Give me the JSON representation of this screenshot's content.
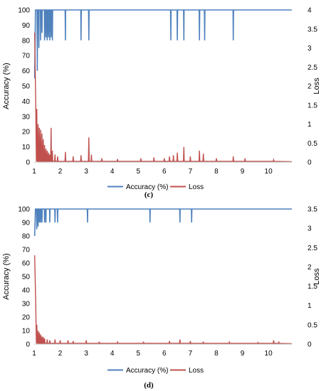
{
  "chart_data": [
    {
      "type": "line",
      "panel_label": "(c)",
      "ylabel": "Accuracy (%)",
      "y2label": "Loss",
      "xlim": [
        1,
        10.9
      ],
      "ylim": [
        0,
        100
      ],
      "y2lim": [
        0,
        4
      ],
      "x_ticks": [
        "1",
        "2",
        "3",
        "4",
        "5",
        "6",
        "7",
        "8",
        "9",
        "10"
      ],
      "y_ticks": [
        "0",
        "10",
        "20",
        "30",
        "40",
        "50",
        "60",
        "70",
        "80",
        "90",
        "100"
      ],
      "y2_ticks": [
        "0",
        "0.5",
        "1",
        "1.5",
        "2",
        "2.5",
        "3",
        "3.5",
        "4"
      ],
      "y2_tick_values": [
        0,
        0.5,
        1,
        1.5,
        2,
        2.5,
        3,
        3.5,
        4
      ],
      "legend": [
        "Accuracy (%)",
        "Loss"
      ],
      "legend_position": "bottom",
      "grid": false,
      "series": [
        {
          "name": "Accuracy (%)",
          "color": "#4f81bd",
          "baseline": 100,
          "min_start": 55,
          "dips": [
            [
              1.12,
              60
            ],
            [
              1.18,
              75
            ],
            [
              1.25,
              80
            ],
            [
              1.3,
              85
            ],
            [
              1.4,
              80
            ],
            [
              1.45,
              82
            ],
            [
              1.5,
              80
            ],
            [
              1.55,
              82
            ],
            [
              1.6,
              80
            ],
            [
              1.65,
              82
            ],
            [
              1.7,
              80
            ],
            [
              2.2,
              80
            ],
            [
              2.8,
              80
            ],
            [
              3.1,
              80
            ],
            [
              6.25,
              80
            ],
            [
              6.5,
              80
            ],
            [
              6.75,
              80
            ],
            [
              7.35,
              80
            ],
            [
              7.55,
              80
            ],
            [
              8.65,
              80
            ]
          ]
        },
        {
          "name": "Loss",
          "color": "#c0504d",
          "start": 3.4,
          "spikes": [
            [
              1.1,
              1.4
            ],
            [
              1.15,
              1.0
            ],
            [
              1.2,
              0.9
            ],
            [
              1.25,
              0.85
            ],
            [
              1.3,
              0.75
            ],
            [
              1.35,
              0.6
            ],
            [
              1.4,
              0.45
            ],
            [
              1.45,
              0.35
            ],
            [
              1.5,
              0.3
            ],
            [
              1.55,
              0.25
            ],
            [
              1.6,
              0.2
            ],
            [
              1.65,
              0.9
            ],
            [
              1.7,
              0.3
            ],
            [
              1.8,
              0.2
            ],
            [
              1.9,
              0.15
            ],
            [
              2.2,
              0.27
            ],
            [
              2.5,
              0.15
            ],
            [
              2.8,
              0.18
            ],
            [
              3.1,
              0.65
            ],
            [
              3.2,
              0.2
            ],
            [
              3.6,
              0.1
            ],
            [
              4.2,
              0.08
            ],
            [
              5.1,
              0.1
            ],
            [
              5.6,
              0.12
            ],
            [
              6.0,
              0.1
            ],
            [
              6.2,
              0.15
            ],
            [
              6.35,
              0.18
            ],
            [
              6.5,
              0.25
            ],
            [
              6.75,
              0.4
            ],
            [
              7.0,
              0.15
            ],
            [
              7.35,
              0.3
            ],
            [
              7.5,
              0.22
            ],
            [
              8.0,
              0.1
            ],
            [
              8.65,
              0.15
            ],
            [
              9.1,
              0.1
            ],
            [
              10.2,
              0.06
            ]
          ]
        }
      ]
    },
    {
      "type": "line",
      "panel_label": "(d)",
      "ylabel": "Accuracy (%)",
      "y2label": "Loss",
      "xlim": [
        1,
        10.9
      ],
      "ylim": [
        0,
        100
      ],
      "y2lim": [
        0,
        3.5
      ],
      "x_ticks": [
        "1",
        "2",
        "3",
        "4",
        "5",
        "6",
        "7",
        "8",
        "9",
        "10"
      ],
      "y_ticks": [
        "0",
        "10",
        "20",
        "30",
        "40",
        "50",
        "60",
        "70",
        "80",
        "90",
        "100"
      ],
      "y2_ticks": [
        "0",
        "0.5",
        "1",
        "1.5",
        "2",
        "2.5",
        "3",
        "3.5"
      ],
      "y2_tick_values": [
        0,
        0.5,
        1,
        1.5,
        2,
        2.5,
        3,
        3.5
      ],
      "legend": [
        "Accuracy (%)",
        "Loss"
      ],
      "legend_position": "bottom",
      "grid": false,
      "series": [
        {
          "name": "Accuracy (%)",
          "color": "#4f81bd",
          "baseline": 100,
          "min_start": 80,
          "dips": [
            [
              1.1,
              85
            ],
            [
              1.15,
              87
            ],
            [
              1.2,
              90
            ],
            [
              1.25,
              90
            ],
            [
              1.3,
              90
            ],
            [
              1.4,
              90
            ],
            [
              1.45,
              90
            ],
            [
              1.6,
              90
            ],
            [
              1.8,
              90
            ],
            [
              1.9,
              90
            ],
            [
              3.05,
              90
            ],
            [
              5.45,
              90
            ],
            [
              6.6,
              90
            ],
            [
              7.05,
              90
            ]
          ]
        },
        {
          "name": "Loss",
          "color": "#c0504d",
          "start": 2.3,
          "spikes": [
            [
              1.1,
              0.5
            ],
            [
              1.15,
              0.35
            ],
            [
              1.2,
              0.3
            ],
            [
              1.25,
              0.25
            ],
            [
              1.3,
              0.2
            ],
            [
              1.35,
              0.18
            ],
            [
              1.4,
              0.15
            ],
            [
              1.5,
              0.12
            ],
            [
              1.6,
              0.1
            ],
            [
              1.8,
              0.12
            ],
            [
              2.0,
              0.1
            ],
            [
              2.3,
              0.1
            ],
            [
              2.5,
              0.08
            ],
            [
              3.0,
              0.1
            ],
            [
              3.5,
              0.06
            ],
            [
              4.2,
              0.05
            ],
            [
              5.2,
              0.06
            ],
            [
              6.2,
              0.08
            ],
            [
              6.6,
              0.12
            ],
            [
              7.0,
              0.08
            ],
            [
              7.5,
              0.06
            ],
            [
              8.5,
              0.05
            ],
            [
              9.6,
              0.04
            ],
            [
              10.2,
              0.1
            ],
            [
              10.4,
              0.05
            ]
          ]
        }
      ]
    }
  ]
}
